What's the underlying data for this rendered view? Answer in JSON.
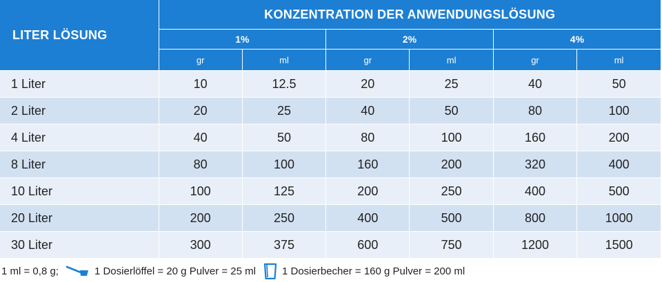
{
  "table": {
    "corner_label": "LITER LÖSUNG",
    "title": "KONZENTRATION DER ANWENDUNGSLÖSUNG",
    "concentrations": [
      "1%",
      "2%",
      "4%"
    ],
    "units": [
      "gr",
      "ml",
      "gr",
      "ml",
      "gr",
      "ml"
    ],
    "rows": [
      {
        "label": "1 Liter",
        "values": [
          "10",
          "12.5",
          "20",
          "25",
          "40",
          "50"
        ]
      },
      {
        "label": "2 Liter",
        "values": [
          "20",
          "25",
          "40",
          "50",
          "80",
          "100"
        ]
      },
      {
        "label": "4 Liter",
        "values": [
          "40",
          "50",
          "80",
          "100",
          "160",
          "200"
        ]
      },
      {
        "label": "8 Liter",
        "values": [
          "80",
          "100",
          "160",
          "200",
          "320",
          "400"
        ]
      },
      {
        "label": "10 Liter",
        "values": [
          "100",
          "125",
          "200",
          "250",
          "400",
          "500"
        ]
      },
      {
        "label": "20 Liter",
        "values": [
          "200",
          "250",
          "400",
          "500",
          "800",
          "1000"
        ]
      },
      {
        "label": "30 Liter",
        "values": [
          "300",
          "375",
          "600",
          "750",
          "1200",
          "1500"
        ]
      }
    ]
  },
  "footer": {
    "conversion": "1 ml = 0,8 g;",
    "scoop_icon": "measuring-spoon-icon",
    "scoop_text": "1 Dosierlöffel = 20 g Pulver = 25 ml",
    "cup_icon": "measuring-cup-icon",
    "cup_text": "1 Dosierbecher = 160 g Pulver = 200 ml"
  },
  "colors": {
    "header_blue": "#1c7fd4",
    "row_light": "#e8eff8",
    "row_dark": "#d2e1f2",
    "icon_blue": "#1c7fd4"
  }
}
